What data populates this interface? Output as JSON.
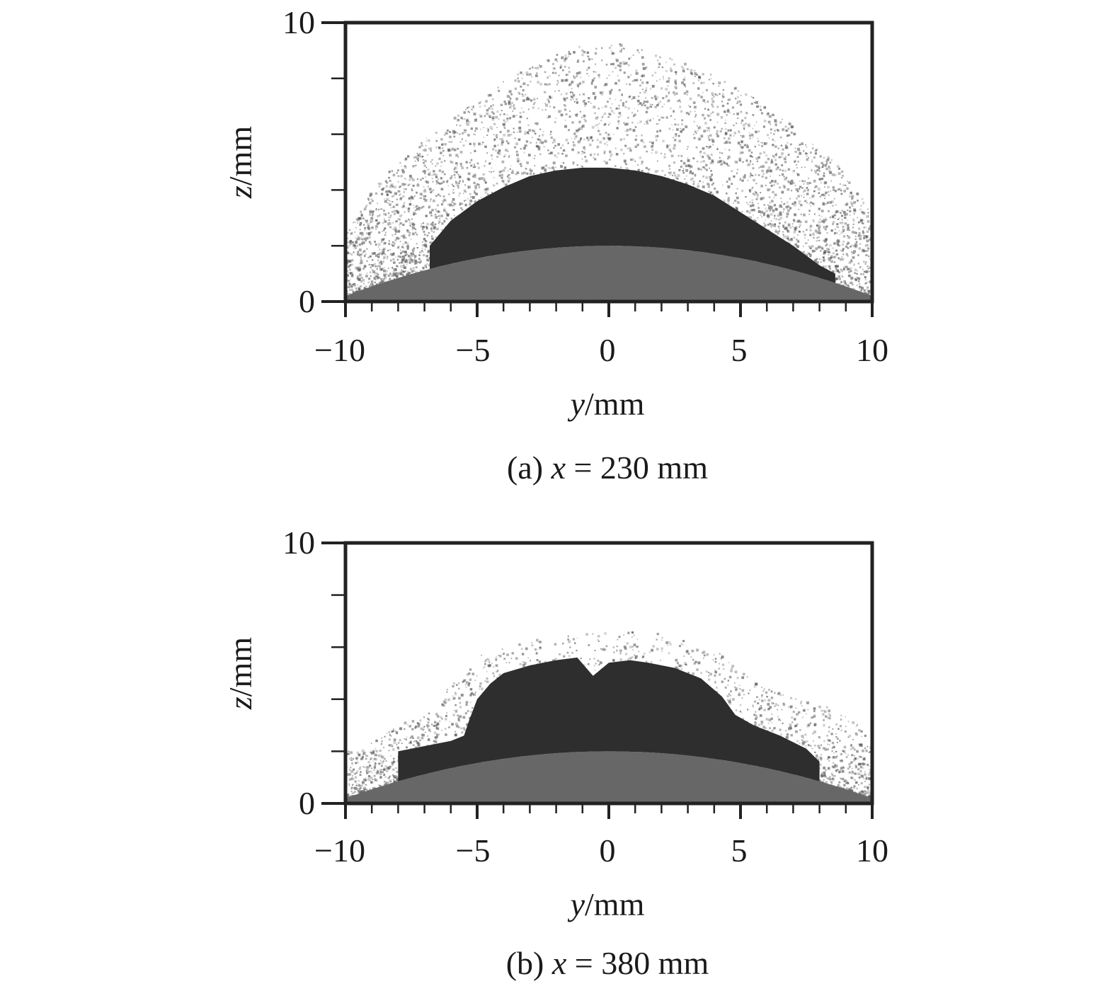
{
  "chart_data": [
    {
      "type": "scatter",
      "xlabel_var": "y",
      "xlabel_unit": "/mm",
      "ylabel_var": "z",
      "ylabel_unit": "/mm",
      "xlim": [
        -10,
        10
      ],
      "ylim": [
        0,
        10
      ],
      "x_ticks": [
        -10,
        -5,
        0,
        5,
        10
      ],
      "y_ticks": [
        0,
        10
      ],
      "x_tick_labels": [
        "−10",
        "−5",
        "0",
        "5",
        "10"
      ],
      "y_tick_labels": [
        "0",
        "10"
      ],
      "caption_prefix": "(a) ",
      "caption_var": "x",
      "caption_rest": " = 230 mm",
      "surface": {
        "peak_z": 2.0,
        "edge_z": 0.2
      },
      "dense_region": [
        [
          -6.8,
          2.0
        ],
        [
          -6.0,
          2.9
        ],
        [
          -5.0,
          3.6
        ],
        [
          -4.0,
          4.1
        ],
        [
          -3.0,
          4.5
        ],
        [
          -2.0,
          4.7
        ],
        [
          -1.0,
          4.8
        ],
        [
          0.0,
          4.8
        ],
        [
          1.0,
          4.7
        ],
        [
          2.0,
          4.5
        ],
        [
          3.0,
          4.2
        ],
        [
          4.0,
          3.8
        ],
        [
          5.0,
          3.2
        ],
        [
          6.0,
          2.6
        ],
        [
          7.0,
          2.0
        ],
        [
          8.0,
          1.3
        ],
        [
          8.6,
          1.0
        ]
      ],
      "spray_envelope": [
        [
          -10.0,
          2.4
        ],
        [
          -9.0,
          4.0
        ],
        [
          -8.0,
          5.0
        ],
        [
          -7.0,
          5.8
        ],
        [
          -5.5,
          6.8
        ],
        [
          -4.0,
          7.8
        ],
        [
          -2.5,
          8.6
        ],
        [
          -1.0,
          9.1
        ],
        [
          0.0,
          9.2
        ],
        [
          1.0,
          9.0
        ],
        [
          2.5,
          8.6
        ],
        [
          4.0,
          8.0
        ],
        [
          5.5,
          7.2
        ],
        [
          7.0,
          6.2
        ],
        [
          8.5,
          5.0
        ],
        [
          9.5,
          3.8
        ],
        [
          10.0,
          3.0
        ]
      ],
      "colors": {
        "surface": "#676767",
        "dense": "#2e2e2e",
        "scatter": "#555555"
      }
    },
    {
      "type": "scatter",
      "xlabel_var": "y",
      "xlabel_unit": "/mm",
      "ylabel_var": "z",
      "ylabel_unit": "/mm",
      "xlim": [
        -10,
        10
      ],
      "ylim": [
        0,
        10
      ],
      "x_ticks": [
        -10,
        -5,
        0,
        5,
        10
      ],
      "y_ticks": [
        0,
        10
      ],
      "x_tick_labels": [
        "−10",
        "−5",
        "0",
        "5",
        "10"
      ],
      "y_tick_labels": [
        "0",
        "10"
      ],
      "caption_prefix": "(b) ",
      "caption_var": "x",
      "caption_rest": " = 380 mm",
      "surface": {
        "peak_z": 2.0,
        "edge_z": 0.2
      },
      "dense_region": [
        [
          -8.0,
          2.0
        ],
        [
          -7.0,
          2.2
        ],
        [
          -6.0,
          2.4
        ],
        [
          -5.5,
          2.6
        ],
        [
          -5.3,
          3.2
        ],
        [
          -5.0,
          4.0
        ],
        [
          -4.5,
          4.6
        ],
        [
          -4.0,
          5.0
        ],
        [
          -3.0,
          5.3
        ],
        [
          -2.0,
          5.5
        ],
        [
          -1.2,
          5.6
        ],
        [
          -0.6,
          4.9
        ],
        [
          0.0,
          5.4
        ],
        [
          0.8,
          5.5
        ],
        [
          1.5,
          5.4
        ],
        [
          2.5,
          5.2
        ],
        [
          3.5,
          4.8
        ],
        [
          4.3,
          4.1
        ],
        [
          4.8,
          3.4
        ],
        [
          5.5,
          3.0
        ],
        [
          6.5,
          2.6
        ],
        [
          7.5,
          2.1
        ],
        [
          8.0,
          1.6
        ]
      ],
      "spray_envelope": [
        [
          -9.5,
          2.0
        ],
        [
          -8.0,
          3.0
        ],
        [
          -6.5,
          4.0
        ],
        [
          -5.0,
          5.6
        ],
        [
          -4.0,
          6.0
        ],
        [
          -2.5,
          6.3
        ],
        [
          -1.0,
          6.5
        ],
        [
          0.0,
          6.6
        ],
        [
          1.5,
          6.5
        ],
        [
          3.0,
          6.4
        ],
        [
          4.0,
          5.9
        ],
        [
          5.5,
          4.6
        ],
        [
          7.0,
          4.0
        ],
        [
          8.5,
          3.6
        ],
        [
          9.5,
          3.0
        ],
        [
          10.0,
          2.0
        ]
      ],
      "colors": {
        "surface": "#676767",
        "dense": "#2e2e2e",
        "scatter": "#555555"
      }
    }
  ]
}
